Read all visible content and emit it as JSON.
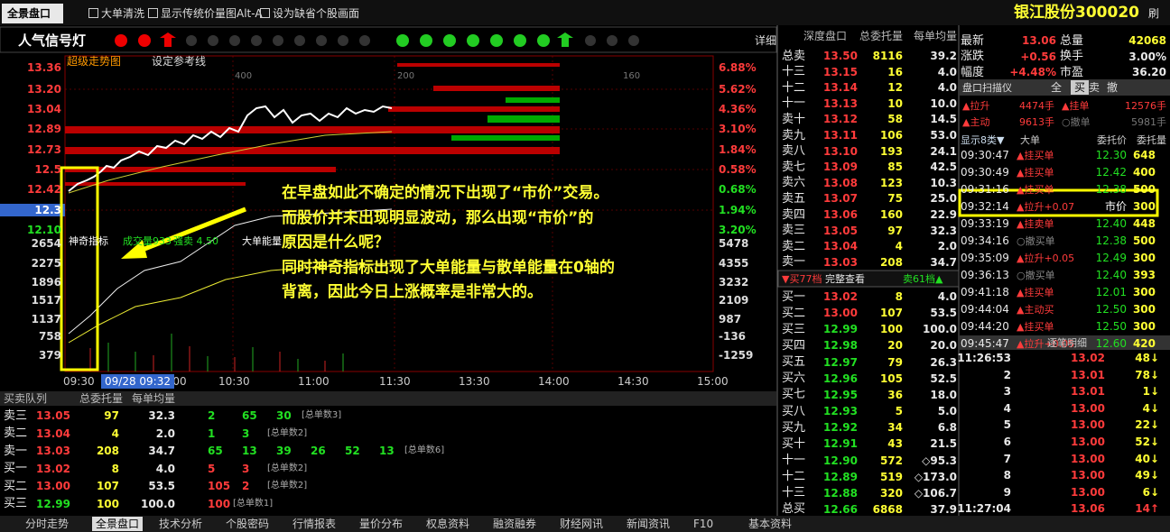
{
  "toolbar": {
    "tab": "全景盘口",
    "options": [
      "大单清洗",
      "显示传统价量图Alt-A",
      "设为缺省个股画面"
    ],
    "stock": "银江股份300020",
    "refresh": "刷"
  },
  "signal": {
    "title": "人气信号灯",
    "detail": "详细"
  },
  "chart": {
    "title": "超级走势图",
    "reference": "设定参考线",
    "price_labels": [
      "13.36",
      "13.20",
      "13.04",
      "12.89",
      "12.73",
      "12.5",
      "12.42",
      "12.3",
      "12.10"
    ],
    "pct_labels": [
      "6.88%",
      "5.62%",
      "4.36%",
      "3.10%",
      "1.84%",
      "0.58%",
      "0.68%",
      "1.94%",
      "3.20%"
    ],
    "grid_labels": [
      "400",
      "200",
      "160"
    ],
    "indicator": [
      "神奇指标",
      "成交量933",
      "强卖 4.50",
      "大单能量"
    ],
    "vol_left": [
      "2654",
      "2275",
      "1896",
      "1517",
      "1137",
      "758",
      "379"
    ],
    "vol_right": [
      "5478",
      "4355",
      "3232",
      "2109",
      "987",
      "-136",
      "-1259"
    ],
    "times": [
      "09:30",
      "10:00",
      "10:30",
      "11:00",
      "11:30",
      "13:30",
      "14:00",
      "14:30",
      "15:00"
    ],
    "cursor": "09/28 09:32"
  },
  "annotation": [
    "在早盘如此不确定的情况下出现了“市价”交易。",
    "而股价并未出现明显波动，那么出现“市价”的",
    "原因是什么呢？",
    "同时神奇指标出现了大单能量与散单能量在0轴的",
    "背离，因此今日上涨概率是非常大的。"
  ],
  "queue": {
    "header": [
      "买卖队列",
      "总委托量",
      "每单均量"
    ],
    "rows": [
      {
        "cells": [
          "卖三",
          "13.05",
          "97",
          "32.3"
        ],
        "orders": [
          "2",
          "65",
          "30"
        ],
        "count": "[总单数3]"
      },
      {
        "cells": [
          "卖二",
          "13.04",
          "4",
          "2.0"
        ],
        "orders": [
          "1",
          "3"
        ],
        "count": "[总单数2]"
      },
      {
        "cells": [
          "卖一",
          "13.03",
          "208",
          "34.7"
        ],
        "orders": [
          "65",
          "13",
          "39",
          "26",
          "52",
          "13"
        ],
        "count": "[总单数6]"
      },
      {
        "cells": [
          "买一",
          "13.02",
          "8",
          "4.0"
        ],
        "orders": [
          "5",
          "3"
        ],
        "count": "[总单数2]"
      },
      {
        "cells": [
          "买二",
          "13.00",
          "107",
          "53.5"
        ],
        "orders": [
          "105",
          "2"
        ],
        "count": "[总单数2]"
      },
      {
        "cells": [
          "买三",
          "12.99",
          "100",
          "100.0"
        ],
        "orders": [
          "100"
        ],
        "count": "[总单数1]"
      }
    ]
  },
  "tabs": [
    "分时走势",
    "全景盘口",
    "技术分析",
    "个股密码",
    "行情报表",
    "量价分布",
    "权息资料",
    "融资融券",
    "财经网讯",
    "新闻资讯",
    "F10",
    "基本资料"
  ],
  "orderbook": {
    "header": [
      "深度盘口",
      "总委托量",
      "每单均量"
    ],
    "sell": [
      [
        "总卖",
        "13.50",
        "8116",
        "39.2"
      ],
      [
        "十三",
        "13.15",
        "16",
        "4.0"
      ],
      [
        "十二",
        "13.14",
        "12",
        "4.0"
      ],
      [
        "十一",
        "13.13",
        "10",
        "10.0"
      ],
      [
        "卖十",
        "13.12",
        "58",
        "14.5"
      ],
      [
        "卖九",
        "13.11",
        "106",
        "53.0"
      ],
      [
        "卖八",
        "13.10",
        "193",
        "24.1"
      ],
      [
        "卖七",
        "13.09",
        "85",
        "42.5"
      ],
      [
        "卖六",
        "13.08",
        "123",
        "10.3"
      ],
      [
        "卖五",
        "13.07",
        "75",
        "25.0"
      ],
      [
        "卖四",
        "13.06",
        "160",
        "22.9"
      ],
      [
        "卖三",
        "13.05",
        "97",
        "32.3"
      ],
      [
        "卖二",
        "13.04",
        "4",
        "2.0"
      ],
      [
        "卖一",
        "13.03",
        "208",
        "34.7"
      ]
    ],
    "mid": [
      "▼买77档",
      "完整查看",
      "卖61档▲"
    ],
    "buy": [
      [
        "买一",
        "13.02",
        "8",
        "4.0"
      ],
      [
        "买二",
        "13.00",
        "107",
        "53.5"
      ],
      [
        "买三",
        "12.99",
        "100",
        "100.0"
      ],
      [
        "买四",
        "12.98",
        "20",
        "20.0"
      ],
      [
        "买五",
        "12.97",
        "79",
        "26.3"
      ],
      [
        "买六",
        "12.96",
        "105",
        "52.5"
      ],
      [
        "买七",
        "12.95",
        "36",
        "18.0"
      ],
      [
        "买八",
        "12.93",
        "5",
        "5.0"
      ],
      [
        "买九",
        "12.92",
        "34",
        "6.8"
      ],
      [
        "买十",
        "12.91",
        "43",
        "21.5"
      ],
      [
        "十一",
        "12.90",
        "572",
        "◇95.3"
      ],
      [
        "十二",
        "12.89",
        "519",
        "◇173.0"
      ],
      [
        "十三",
        "12.88",
        "320",
        "◇106.7"
      ],
      [
        "总买",
        "12.66",
        "6868",
        "37.9"
      ]
    ]
  },
  "quote": [
    [
      "最新",
      "13.06",
      "总量",
      "42068"
    ],
    [
      "涨跌",
      "+0.56",
      "换手",
      "3.00%"
    ],
    [
      "幅度",
      "+4.48%",
      "市盈",
      "36.20"
    ]
  ],
  "scanner": {
    "title": "盘口扫描仪",
    "tabs": [
      "全",
      "买",
      "卖",
      "撤"
    ],
    "summary": [
      [
        "▲拉升",
        "4474手",
        "▲挂单",
        "12576手"
      ],
      [
        "▲主动",
        "9613手",
        "○撤单",
        "5981手"
      ]
    ],
    "header": [
      "显示8类▼",
      "大单",
      "委托价",
      "委托量"
    ],
    "rows": [
      [
        "09:30:47",
        "▲挂买单",
        "12.30",
        "648"
      ],
      [
        "09:30:49",
        "▲挂买单",
        "12.42",
        "400"
      ],
      [
        "09:31:16",
        "▲挂买单",
        "12.38",
        "500"
      ],
      [
        "09:32:14",
        "▲拉升+0.07",
        "市价",
        "300"
      ],
      [
        "09:33:19",
        "▲挂卖单",
        "12.40",
        "448"
      ],
      [
        "09:34:16",
        "○撤买单",
        "12.38",
        "500"
      ],
      [
        "09:35:09",
        "▲拉升+0.05",
        "12.49",
        "300"
      ],
      [
        "09:36:13",
        "○撤买单",
        "12.40",
        "393"
      ],
      [
        "09:41:18",
        "▲挂买单",
        "12.01",
        "300"
      ],
      [
        "09:44:04",
        "▲主动买",
        "12.50",
        "300"
      ],
      [
        "09:44:20",
        "▲挂买单",
        "12.50",
        "300"
      ],
      [
        "09:45:47",
        "▲拉升+0.05",
        "12.60",
        "420"
      ]
    ]
  },
  "ticks": {
    "title": "逐笔明细",
    "rows": [
      [
        "11:26:53",
        "13.02",
        "48↓"
      ],
      [
        "2",
        "13.01",
        "78↓"
      ],
      [
        "3",
        "13.01",
        "1↓"
      ],
      [
        "4",
        "13.00",
        "4↓"
      ],
      [
        "5",
        "13.00",
        "22↓"
      ],
      [
        "6",
        "13.00",
        "52↓"
      ],
      [
        "7",
        "13.00",
        "40↓"
      ],
      [
        "8",
        "13.00",
        "49↓"
      ],
      [
        "9",
        "13.00",
        "6↓"
      ],
      [
        "11:27:04",
        "13.06",
        "14↑"
      ]
    ]
  }
}
